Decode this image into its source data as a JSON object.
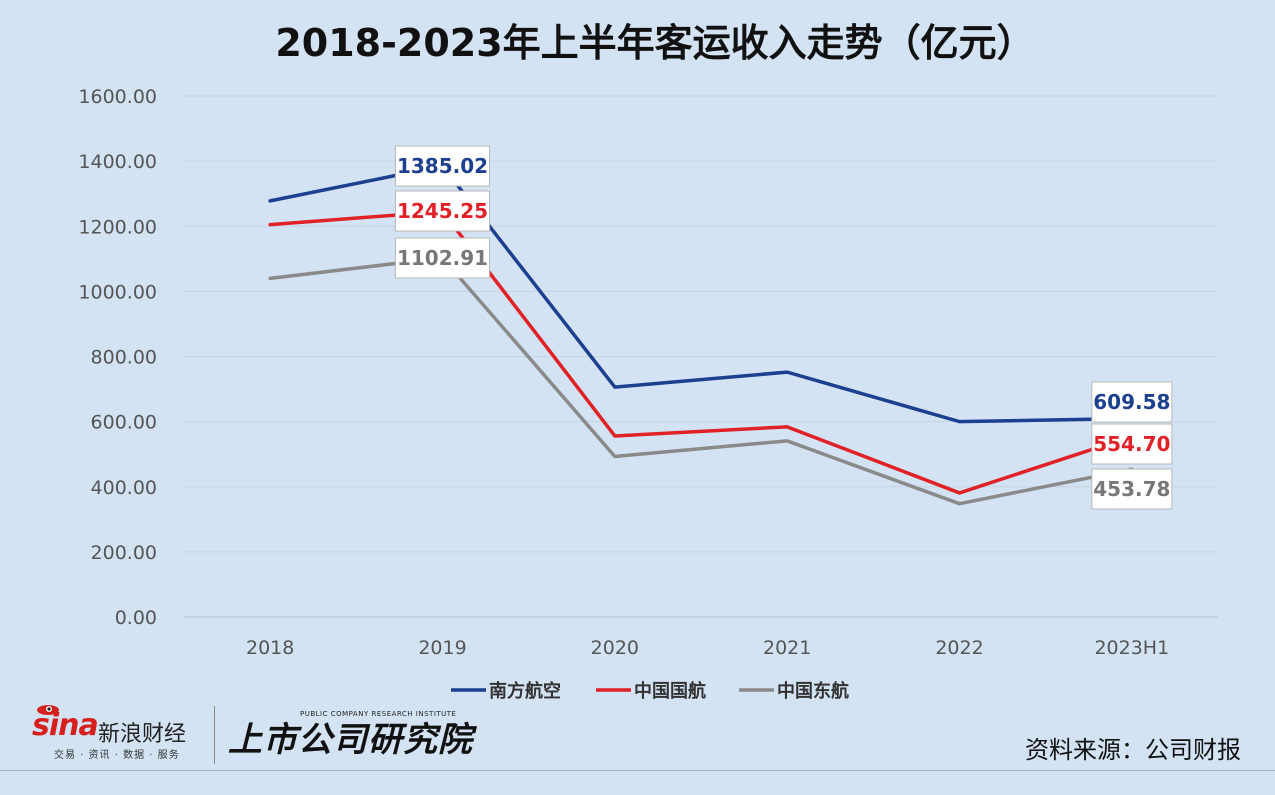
{
  "chart_data": {
    "type": "line",
    "title": "2018-2023年上半年客运收入走势（亿元）",
    "categories": [
      "2018",
      "2019",
      "2020",
      "2021",
      "2022",
      "2023H1"
    ],
    "ylim": [
      0,
      1600
    ],
    "yticks": [
      "0.00",
      "200.00",
      "400.00",
      "600.00",
      "800.00",
      "1000.00",
      "1200.00",
      "1400.00",
      "1600.00"
    ],
    "grid": true,
    "legend_position": "bottom",
    "series": [
      {
        "name": "南方航空",
        "color": "#1c3f8f",
        "values": [
          1278,
          1385.02,
          706,
          752,
          600,
          609.58
        ]
      },
      {
        "name": "中国国航",
        "color": "#e02126",
        "values": [
          1205,
          1245.25,
          556,
          584,
          381,
          554.7
        ]
      },
      {
        "name": "中国东航",
        "color": "#8a8a8a",
        "values": [
          1040,
          1102.91,
          493,
          541,
          348,
          453.78
        ]
      }
    ],
    "annotations": [
      {
        "series": 0,
        "point": 1,
        "text": "1385.02"
      },
      {
        "series": 1,
        "point": 1,
        "text": "1245.25"
      },
      {
        "series": 2,
        "point": 1,
        "text": "1102.91"
      },
      {
        "series": 0,
        "point": 5,
        "text": "609.58"
      },
      {
        "series": 1,
        "point": 5,
        "text": "554.70"
      },
      {
        "series": 2,
        "point": 5,
        "text": "453.78"
      }
    ]
  },
  "footer": {
    "sina_logo": "sina",
    "sina_name": "新浪财经",
    "sina_sub": "交易 · 资讯 · 数据 · 服务",
    "institute_name": "上市公司研究院",
    "institute_en": "PUBLIC COMPANY RESEARCH INSTITUTE",
    "source": "资料来源：公司财报"
  }
}
